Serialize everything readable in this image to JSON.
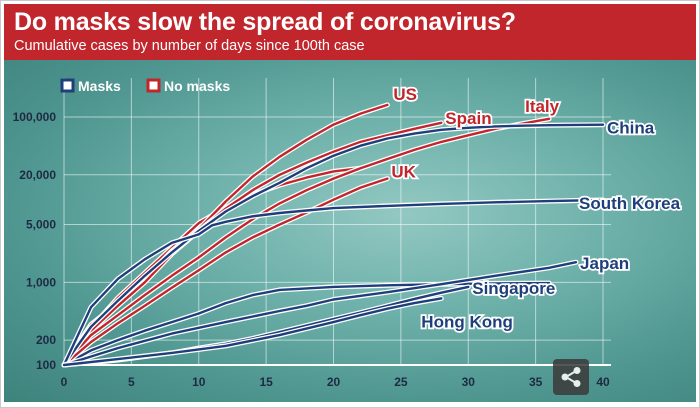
{
  "chart_data": {
    "type": "line",
    "title": "Do masks slow the spread of coronavirus?",
    "subtitle": "Cumulative cases by number of days since 100th case",
    "xlabel": "",
    "ylabel": "",
    "xlim": [
      0,
      40
    ],
    "ylim": [
      100,
      150000
    ],
    "yscale": "log",
    "x_ticks": [
      0,
      5,
      10,
      15,
      20,
      25,
      30,
      35,
      40
    ],
    "y_ticks": [
      {
        "value": 100,
        "label": "100"
      },
      {
        "value": 200,
        "label": "200"
      },
      {
        "value": 1000,
        "label": "1,000"
      },
      {
        "value": 5000,
        "label": "5,000"
      },
      {
        "value": 20000,
        "label": "20,000"
      },
      {
        "value": 100000,
        "label": "100,000"
      }
    ],
    "grid": true,
    "legend": {
      "placement": "top-left",
      "entries": [
        {
          "label": "Masks",
          "color": "#1f3f7a"
        },
        {
          "label": "No masks",
          "color": "#c0262c"
        }
      ]
    },
    "colors": {
      "masks": "#1f3f7a",
      "no_masks": "#c0262c",
      "header": "#c0262c"
    },
    "series": [
      {
        "name": "US",
        "group": "No masks",
        "x": [
          0,
          2,
          4,
          6,
          8,
          10,
          12,
          14,
          16,
          18,
          20,
          22,
          24
        ],
        "y": [
          100,
          310,
          560,
          1100,
          2400,
          4400,
          9500,
          19000,
          33000,
          53000,
          81000,
          110000,
          140000
        ]
      },
      {
        "name": "Spain",
        "group": "No masks",
        "x": [
          0,
          2,
          4,
          6,
          8,
          10,
          12,
          14,
          16,
          18,
          20,
          22,
          24,
          26,
          28
        ],
        "y": [
          100,
          260,
          520,
          1000,
          2200,
          4200,
          7800,
          13000,
          20000,
          28000,
          38000,
          50000,
          60000,
          72000,
          85000
        ]
      },
      {
        "name": "Italy",
        "group": "No masks",
        "x": [
          0,
          2,
          4,
          6,
          8,
          10,
          12,
          14,
          16,
          18,
          20,
          22,
          24,
          26,
          28,
          30,
          32,
          34,
          36
        ],
        "y": [
          100,
          230,
          400,
          700,
          1200,
          2000,
          3500,
          5800,
          9000,
          13000,
          18000,
          24000,
          31000,
          40000,
          50000,
          60000,
          72000,
          83000,
          95000
        ]
      },
      {
        "name": "UK",
        "group": "No masks",
        "x": [
          0,
          2,
          4,
          6,
          8,
          10,
          12,
          14,
          16,
          18,
          20,
          22,
          24
        ],
        "y": [
          100,
          190,
          320,
          520,
          860,
          1400,
          2300,
          3500,
          5000,
          7000,
          10000,
          14000,
          18000
        ]
      },
      {
        "name": "China",
        "group": "Masks",
        "x": [
          0,
          2,
          4,
          6,
          8,
          10,
          12,
          14,
          16,
          18,
          20,
          22,
          24,
          26,
          28,
          30,
          32,
          34,
          36,
          40
        ],
        "y": [
          100,
          290,
          600,
          1200,
          2300,
          4200,
          7200,
          11000,
          16000,
          24000,
          34000,
          45000,
          55000,
          63000,
          70000,
          74000,
          77000,
          78500,
          79500,
          80800
        ]
      },
      {
        "name": "South Korea",
        "group": "Masks",
        "x": [
          0,
          2,
          4,
          6,
          8,
          10,
          11,
          12,
          14,
          16,
          18,
          20,
          24,
          28,
          32,
          36,
          40
        ],
        "y": [
          100,
          500,
          1100,
          1900,
          3000,
          3800,
          4900,
          5400,
          6300,
          6900,
          7400,
          7900,
          8400,
          8900,
          9300,
          9600,
          9900
        ]
      },
      {
        "name": "Japan",
        "group": "Masks",
        "x": [
          0,
          4,
          8,
          12,
          16,
          18,
          20,
          24,
          28,
          32,
          36,
          38
        ],
        "y": [
          100,
          160,
          240,
          330,
          450,
          520,
          620,
          760,
          950,
          1200,
          1500,
          1750
        ]
      },
      {
        "name": "Singapore",
        "group": "Masks",
        "x": [
          0,
          4,
          8,
          10,
          12,
          14,
          16,
          18,
          20,
          22,
          24,
          26,
          28,
          30
        ],
        "y": [
          100,
          115,
          140,
          160,
          180,
          210,
          250,
          300,
          360,
          430,
          520,
          630,
          750,
          880
        ]
      },
      {
        "name": "Hong Kong",
        "group": "Masks",
        "x": [
          0,
          4,
          8,
          12,
          16,
          20,
          22,
          24,
          26,
          28
        ],
        "y": [
          100,
          118,
          140,
          170,
          230,
          330,
          400,
          480,
          560,
          640
        ]
      }
    ],
    "extra_lines": [
      {
        "group": "No masks",
        "x": [
          0,
          2,
          4,
          6,
          8,
          10,
          12,
          14,
          16,
          18,
          20,
          22
        ],
        "y": [
          100,
          280,
          650,
          1300,
          2600,
          5200,
          8000,
          11500,
          15000,
          18500,
          22000,
          24000
        ]
      },
      {
        "group": "Masks",
        "x": [
          0,
          2,
          4,
          6,
          8,
          10,
          12,
          14,
          16,
          20,
          24,
          28,
          32,
          36
        ],
        "y": [
          100,
          150,
          200,
          260,
          330,
          420,
          560,
          700,
          810,
          880,
          920,
          950,
          970,
          980
        ]
      }
    ]
  }
}
